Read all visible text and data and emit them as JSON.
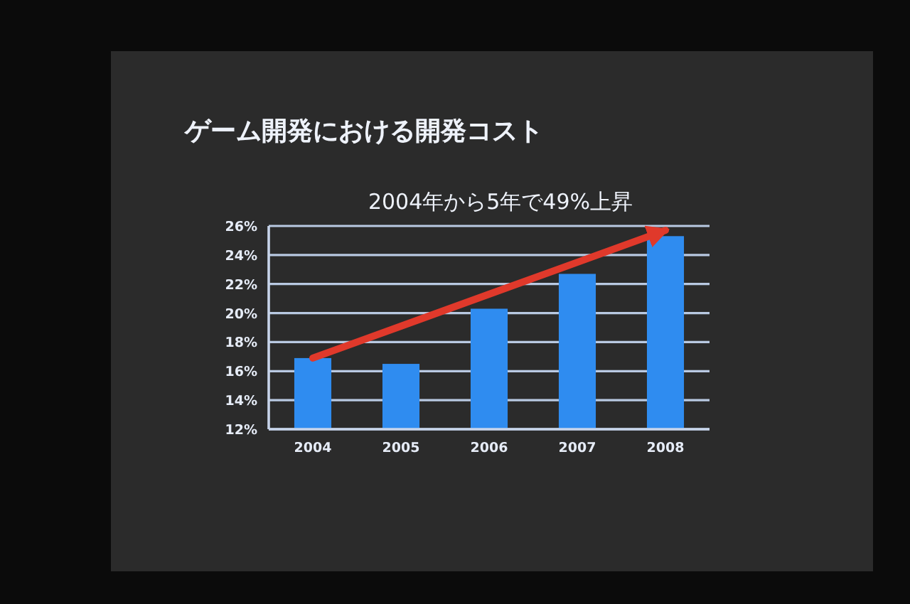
{
  "chart_data": {
    "type": "bar",
    "title": "ゲーム開発における開発コスト",
    "subtitle": "2004年から5年で49%上昇",
    "categories": [
      "2004",
      "2005",
      "2006",
      "2007",
      "2008"
    ],
    "series": [
      {
        "color": "#2f8cf0",
        "values": [
          16.9,
          16.5,
          20.3,
          22.7,
          25.3
        ]
      },
      {
        "type": "line",
        "color": "#e0392b",
        "values": [
          16.9,
          19.1,
          21.3,
          23.5,
          25.7
        ]
      }
    ],
    "ylim": [
      12,
      26
    ],
    "yticks": [
      {
        "value": 12,
        "label": "12%"
      },
      {
        "value": 14,
        "label": "14%"
      },
      {
        "value": 16,
        "label": "16%"
      },
      {
        "value": 18,
        "label": "18%"
      },
      {
        "value": 20,
        "label": "20%"
      },
      {
        "value": 22,
        "label": "22%"
      },
      {
        "value": 24,
        "label": "24%"
      },
      {
        "value": 26,
        "label": "26%"
      }
    ],
    "grid": "y"
  }
}
